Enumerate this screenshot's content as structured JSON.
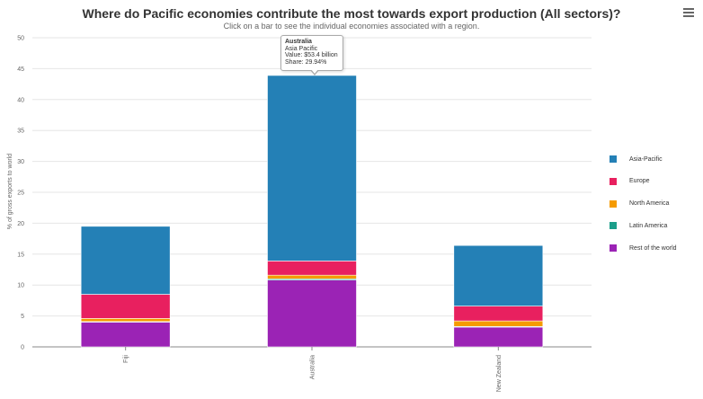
{
  "chart_data": {
    "type": "bar",
    "stacked": true,
    "title": "Where do Pacific economies contribute the most towards export production (All sectors)?",
    "subtitle": "Click on a bar to see the individual economies associated with a region.",
    "ylabel": "% of gross exports to world",
    "xlabel": "",
    "ylim": [
      0,
      50
    ],
    "yticks": [
      "0",
      "5",
      "10",
      "15",
      "20",
      "25",
      "30",
      "35",
      "40",
      "45",
      "50"
    ],
    "categories": [
      "Fiji",
      "Australia",
      "New Zealand"
    ],
    "series": [
      {
        "name": "Rest of the world",
        "color": "#9b23b5",
        "values": [
          4.0,
          10.8,
          3.2
        ]
      },
      {
        "name": "Latin America",
        "color": "#1b9e8a",
        "values": [
          0.1,
          0.2,
          0.1
        ]
      },
      {
        "name": "North America",
        "color": "#f59b00",
        "values": [
          0.5,
          0.6,
          0.9
        ]
      },
      {
        "name": "Europe",
        "color": "#e8205f",
        "values": [
          3.9,
          2.3,
          2.4
        ]
      },
      {
        "name": "Asia-Pacific",
        "color": "#2480b6",
        "values": [
          11.0,
          30.0,
          9.8
        ]
      }
    ],
    "grid": true,
    "legend_position": "right",
    "legend_order": [
      "Asia-Pacific",
      "Europe",
      "North America",
      "Latin America",
      "Rest of the world"
    ]
  },
  "tooltip": {
    "title": "Australia",
    "line1": "Asia Pacific",
    "line2": "Value: $53.4 billion",
    "line3": "Share: 29.94%"
  },
  "menu_icon": "hamburger-menu-icon"
}
